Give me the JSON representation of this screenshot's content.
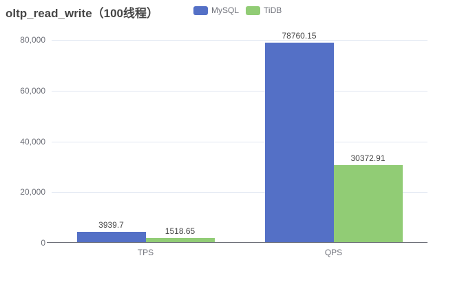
{
  "title": "oltp_read_write（100线程）",
  "legend": [
    {
      "label": "MySQL",
      "color": "#5470C6"
    },
    {
      "label": "TiDB",
      "color": "#91CC75"
    }
  ],
  "chart_data": {
    "type": "bar",
    "title": "oltp_read_write（100线程）",
    "categories": [
      "TPS",
      "QPS"
    ],
    "series": [
      {
        "name": "MySQL",
        "color": "#5470C6",
        "values": [
          3939.7,
          78760.15
        ],
        "labels": [
          "3939.7",
          "78760.15"
        ]
      },
      {
        "name": "TiDB",
        "color": "#91CC75",
        "values": [
          1518.65,
          30372.91
        ],
        "labels": [
          "1518.65",
          "30372.91"
        ]
      }
    ],
    "xlabel": "",
    "ylabel": "",
    "ylim": [
      0,
      80000
    ],
    "yticks": [
      "0",
      "20,000",
      "40,000",
      "60,000",
      "80,000"
    ],
    "grid": true,
    "legend_position": "top"
  },
  "colors": {
    "background": "#ffffff",
    "title_text": "#464646",
    "axis_text": "#6E7079",
    "gridline": "#E0E6F1",
    "axis_line": "#6E7079",
    "value_label_text": "#464646"
  }
}
